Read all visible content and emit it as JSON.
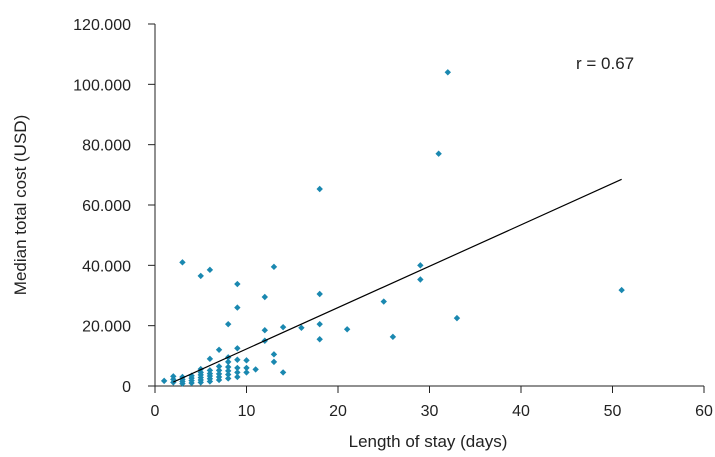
{
  "chart_data": {
    "type": "scatter",
    "title": "",
    "xlabel": "Length of stay (days)",
    "ylabel": "Median total cost (USD)",
    "xlim": [
      0,
      60
    ],
    "ylim": [
      0,
      120000
    ],
    "x_ticks": [
      0,
      10,
      20,
      30,
      40,
      50,
      60
    ],
    "x_tick_labels": [
      "0",
      "10",
      "20",
      "30",
      "40",
      "50",
      "60"
    ],
    "y_ticks": [
      0,
      20000,
      40000,
      60000,
      80000,
      100000,
      120000
    ],
    "y_tick_labels": [
      "0",
      "20.000",
      "40.000",
      "60.000",
      "80.000",
      "100.000",
      "120.000"
    ],
    "grid": false,
    "annotation": "r = 0.67",
    "marker_color": "#1a88b0",
    "line_color": "#000000",
    "points": [
      {
        "x": 1,
        "y": 1700
      },
      {
        "x": 2,
        "y": 1200
      },
      {
        "x": 2,
        "y": 2200
      },
      {
        "x": 2,
        "y": 3200
      },
      {
        "x": 3,
        "y": 800
      },
      {
        "x": 3,
        "y": 1500
      },
      {
        "x": 3,
        "y": 2200
      },
      {
        "x": 3,
        "y": 3000
      },
      {
        "x": 4,
        "y": 1000
      },
      {
        "x": 4,
        "y": 1800
      },
      {
        "x": 4,
        "y": 2600
      },
      {
        "x": 4,
        "y": 3400
      },
      {
        "x": 5,
        "y": 1200
      },
      {
        "x": 5,
        "y": 2000
      },
      {
        "x": 5,
        "y": 2800
      },
      {
        "x": 5,
        "y": 3700
      },
      {
        "x": 5,
        "y": 4500
      },
      {
        "x": 5,
        "y": 5600
      },
      {
        "x": 6,
        "y": 1500
      },
      {
        "x": 6,
        "y": 2400
      },
      {
        "x": 6,
        "y": 3300
      },
      {
        "x": 6,
        "y": 4100
      },
      {
        "x": 6,
        "y": 5200
      },
      {
        "x": 7,
        "y": 2000
      },
      {
        "x": 7,
        "y": 3000
      },
      {
        "x": 7,
        "y": 4000
      },
      {
        "x": 7,
        "y": 5200
      },
      {
        "x": 7,
        "y": 6500
      },
      {
        "x": 8,
        "y": 2500
      },
      {
        "x": 8,
        "y": 3800
      },
      {
        "x": 8,
        "y": 5000
      },
      {
        "x": 8,
        "y": 6300
      },
      {
        "x": 8,
        "y": 8000
      },
      {
        "x": 8,
        "y": 9500
      },
      {
        "x": 9,
        "y": 3000
      },
      {
        "x": 9,
        "y": 4500
      },
      {
        "x": 9,
        "y": 6000
      },
      {
        "x": 9,
        "y": 8700
      },
      {
        "x": 10,
        "y": 4500
      },
      {
        "x": 10,
        "y": 6000
      },
      {
        "x": 10,
        "y": 8500
      },
      {
        "x": 11,
        "y": 5500
      },
      {
        "x": 3,
        "y": 41000
      },
      {
        "x": 5,
        "y": 36500
      },
      {
        "x": 6,
        "y": 38500
      },
      {
        "x": 6,
        "y": 9000
      },
      {
        "x": 7,
        "y": 12000
      },
      {
        "x": 8,
        "y": 20500
      },
      {
        "x": 9,
        "y": 12500
      },
      {
        "x": 9,
        "y": 26000
      },
      {
        "x": 9,
        "y": 33800
      },
      {
        "x": 12,
        "y": 15000
      },
      {
        "x": 12,
        "y": 18500
      },
      {
        "x": 12,
        "y": 29500
      },
      {
        "x": 13,
        "y": 39500
      },
      {
        "x": 13,
        "y": 10500
      },
      {
        "x": 13,
        "y": 8000
      },
      {
        "x": 14,
        "y": 19500
      },
      {
        "x": 14,
        "y": 4500
      },
      {
        "x": 16,
        "y": 19300
      },
      {
        "x": 18,
        "y": 65300
      },
      {
        "x": 18,
        "y": 30500
      },
      {
        "x": 18,
        "y": 20500
      },
      {
        "x": 18,
        "y": 15500
      },
      {
        "x": 21,
        "y": 18800
      },
      {
        "x": 25,
        "y": 28000
      },
      {
        "x": 26,
        "y": 16300
      },
      {
        "x": 29,
        "y": 40000
      },
      {
        "x": 29,
        "y": 35300
      },
      {
        "x": 31,
        "y": 77000
      },
      {
        "x": 32,
        "y": 104000
      },
      {
        "x": 33,
        "y": 22500
      },
      {
        "x": 51,
        "y": 31800
      }
    ],
    "trendline": {
      "x": [
        2,
        51
      ],
      "y": [
        1300,
        68500
      ]
    }
  }
}
